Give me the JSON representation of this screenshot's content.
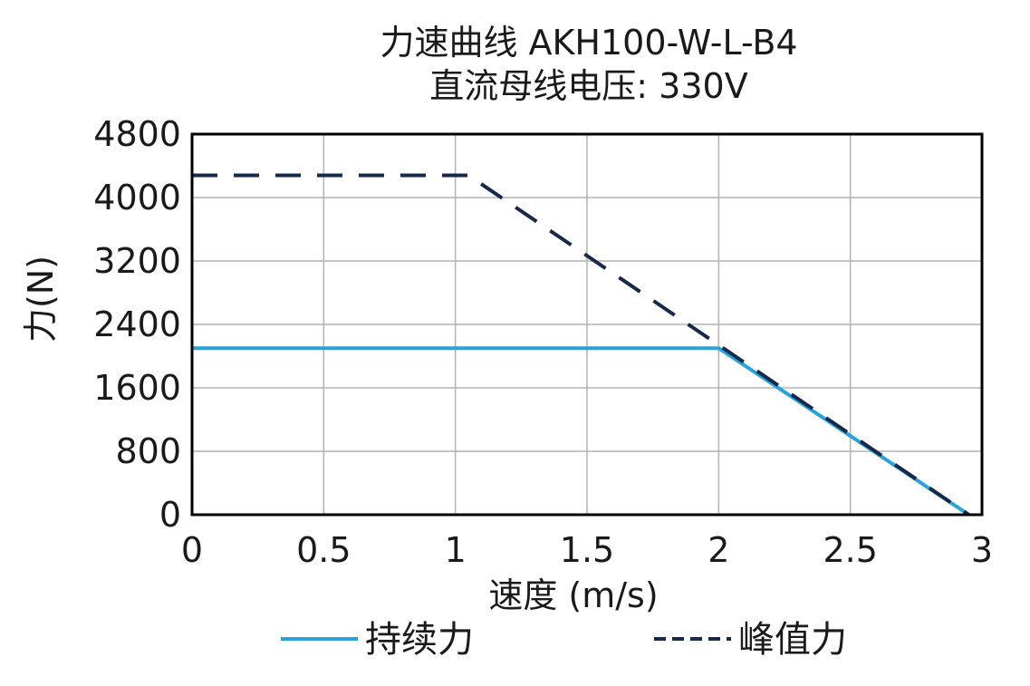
{
  "chart_data": {
    "type": "line",
    "title": "力速曲线 AKH100-W-L-B4",
    "subtitle": "直流母线电压: 330V",
    "xlabel": "速度 (m/s)",
    "ylabel": "力(N)",
    "xlim": [
      0,
      3
    ],
    "ylim": [
      0,
      4800
    ],
    "xticks": [
      0,
      0.5,
      1,
      1.5,
      2,
      2.5,
      3
    ],
    "xtick_labels": [
      "0",
      "0.5",
      "1",
      "1.5",
      "2",
      "2.5",
      "3"
    ],
    "yticks": [
      0,
      800,
      1600,
      2400,
      3200,
      4000,
      4800
    ],
    "ytick_labels": [
      "0",
      "800",
      "1600",
      "2400",
      "3200",
      "4000",
      "4800"
    ],
    "grid": true,
    "legend_position": "bottom",
    "series": [
      {
        "name": "持续力",
        "style": "solid",
        "color": "#29a3dc",
        "x": [
          0,
          2.0,
          2.95
        ],
        "y": [
          2100,
          2100,
          0
        ]
      },
      {
        "name": "峰值力",
        "style": "dashed",
        "color": "#17294a",
        "x": [
          0,
          1.05,
          2.95
        ],
        "y": [
          4280,
          4280,
          0
        ]
      }
    ]
  }
}
